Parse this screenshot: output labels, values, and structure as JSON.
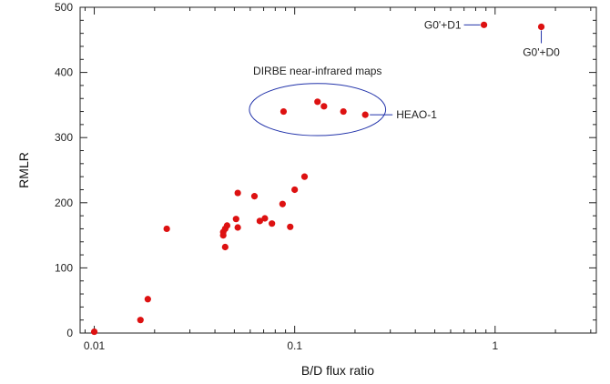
{
  "chart_data": {
    "type": "scatter",
    "xlabel": "B/D flux ratio",
    "ylabel": "RMLR",
    "x_scale": "log",
    "xlim": [
      0.0085,
      3.2
    ],
    "ylim": [
      0,
      500
    ],
    "x_ticks": [
      {
        "value": 0.01,
        "label": "0.01"
      },
      {
        "value": 0.1,
        "label": "0.1"
      },
      {
        "value": 1,
        "label": "1"
      }
    ],
    "y_ticks": [
      {
        "value": 0,
        "label": "0"
      },
      {
        "value": 100,
        "label": "100"
      },
      {
        "value": 200,
        "label": "200"
      },
      {
        "value": 300,
        "label": "300"
      },
      {
        "value": 400,
        "label": "400"
      },
      {
        "value": 500,
        "label": "500"
      }
    ],
    "grid": false,
    "marker_color": "#dd1111",
    "annotation_color": "#2233aa",
    "points": [
      {
        "x": 0.01,
        "y": 2
      },
      {
        "x": 0.017,
        "y": 20
      },
      {
        "x": 0.0185,
        "y": 52
      },
      {
        "x": 0.023,
        "y": 160
      },
      {
        "x": 0.044,
        "y": 155
      },
      {
        "x": 0.044,
        "y": 150
      },
      {
        "x": 0.045,
        "y": 160
      },
      {
        "x": 0.045,
        "y": 132
      },
      {
        "x": 0.046,
        "y": 165
      },
      {
        "x": 0.051,
        "y": 175
      },
      {
        "x": 0.052,
        "y": 215
      },
      {
        "x": 0.052,
        "y": 162
      },
      {
        "x": 0.063,
        "y": 210
      },
      {
        "x": 0.067,
        "y": 172
      },
      {
        "x": 0.071,
        "y": 176
      },
      {
        "x": 0.077,
        "y": 168
      },
      {
        "x": 0.087,
        "y": 198
      },
      {
        "x": 0.095,
        "y": 163
      },
      {
        "x": 0.1,
        "y": 220
      },
      {
        "x": 0.112,
        "y": 240
      },
      {
        "x": 0.088,
        "y": 340
      },
      {
        "x": 0.13,
        "y": 355
      },
      {
        "x": 0.14,
        "y": 348
      },
      {
        "x": 0.175,
        "y": 340
      },
      {
        "x": 0.225,
        "y": 335
      },
      {
        "x": 0.88,
        "y": 473
      },
      {
        "x": 1.7,
        "y": 470
      }
    ],
    "annotations": [
      {
        "text": "DIRBE near-infrared maps",
        "ellipse": {
          "cx": 0.13,
          "cy": 343,
          "rx_dec": 0.34,
          "ry": 40
        }
      },
      {
        "text": "HEAO-1",
        "point": {
          "x": 0.225,
          "y": 335
        }
      },
      {
        "text": "G0'+D1",
        "point": {
          "x": 0.88,
          "y": 473
        }
      },
      {
        "text": "G0'+D0",
        "point": {
          "x": 1.7,
          "y": 470
        }
      }
    ]
  }
}
